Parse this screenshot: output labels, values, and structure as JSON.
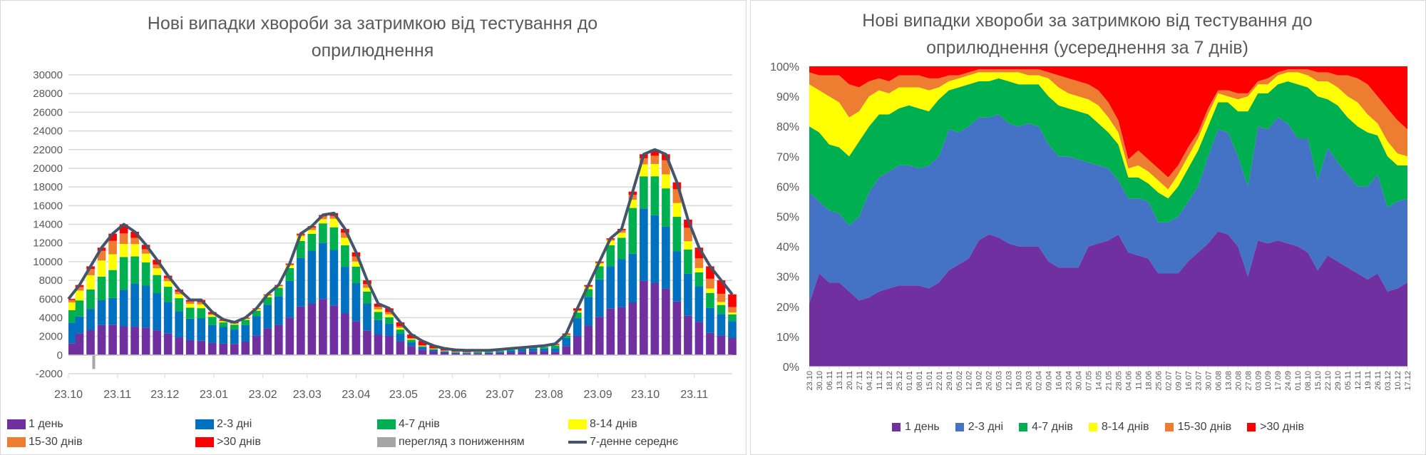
{
  "chart_data": [
    {
      "type": "bar",
      "stacked": true,
      "title": "Нові випадки хвороби за затримкою від тестування до оприлюднення",
      "title_lines": [
        "Нові випадки хвороби за затримкою від тестування до",
        "оприлюднення"
      ],
      "ylim": [
        -2000,
        30000
      ],
      "yticks": [
        "-2000",
        "0",
        "2000",
        "4000",
        "6000",
        "8000",
        "10000",
        "12000",
        "14000",
        "16000",
        "18000",
        "20000",
        "22000",
        "24000",
        "26000",
        "28000",
        "30000"
      ],
      "xtick_labels": [
        "23.10",
        "23.11",
        "23.12",
        "23.01",
        "23.02",
        "23.03",
        "23.04",
        "23.05",
        "23.06",
        "23.07",
        "23.08",
        "23.09",
        "23.10",
        "23.11"
      ],
      "xtick_days": [
        0,
        31,
        61,
        92,
        123,
        151,
        182,
        212,
        243,
        273,
        304,
        335,
        365,
        396
      ],
      "x_days_total": 420,
      "grid": true,
      "legend": [
        {
          "label": "1 день",
          "color": "#7030a0",
          "kind": "bar"
        },
        {
          "label": "2-3 дні",
          "color": "#0070c0",
          "kind": "bar"
        },
        {
          "label": "4-7 днів",
          "color": "#00b050",
          "kind": "bar"
        },
        {
          "label": "8-14 днів",
          "color": "#ffff00",
          "kind": "bar"
        },
        {
          "label": "15-30 днів",
          "color": "#ed7d31",
          "kind": "bar"
        },
        {
          "label": ">30 днів",
          "color": "#ff0000",
          "kind": "bar"
        },
        {
          "label": "перегляд з пониженням",
          "color": "#a6a6a6",
          "kind": "bar"
        },
        {
          "label": "7-денне середнє",
          "color": "#44546a",
          "kind": "line"
        }
      ],
      "legend_placement": "bottom",
      "weekly_7day_average": [
        6000,
        7500,
        9500,
        11500,
        13000,
        14000,
        13200,
        11800,
        10200,
        8500,
        7000,
        5900,
        5900,
        4600,
        3800,
        3500,
        4000,
        5000,
        6500,
        7500,
        9800,
        13000,
        13800,
        15000,
        15200,
        13500,
        11000,
        8000,
        5500,
        5000,
        3500,
        2200,
        1500,
        1000,
        700,
        550,
        500,
        500,
        500,
        600,
        700,
        800,
        900,
        1000,
        1200,
        2300,
        5000,
        7500,
        10000,
        12500,
        13500,
        17500,
        21500,
        22000,
        21500,
        18500,
        14500,
        11500,
        9500,
        8000,
        6500
      ],
      "downgrade_revision": {
        "day": 16,
        "value": -1500
      }
    },
    {
      "type": "area",
      "stacked": true,
      "normalized": true,
      "title": "Нові випадки хвороби за затримкою від тестування до оприлюднення (усереднення за 7 днів)",
      "title_lines": [
        "Нові випадки хвороби за затримкою від тестування до",
        "оприлюднення (усереднення за 7 днів)"
      ],
      "ylim": [
        0,
        100
      ],
      "yticks": [
        "0%",
        "10%",
        "20%",
        "30%",
        "40%",
        "50%",
        "60%",
        "70%",
        "80%",
        "90%",
        "100%"
      ],
      "x": [
        "23.10",
        "30.10",
        "06.11",
        "13.11",
        "20.11",
        "27.11",
        "04.12",
        "11.12",
        "18.12",
        "25.12",
        "01.01",
        "08.01",
        "15.01",
        "22.01",
        "29.01",
        "05.02",
        "12.02",
        "19.02",
        "26.02",
        "05.03",
        "12.03",
        "19.03",
        "26.03",
        "02.04",
        "09.04",
        "16.04",
        "23.04",
        "30.04",
        "07.05",
        "14.05",
        "21.05",
        "28.05",
        "04.06",
        "11.06",
        "18.06",
        "25.06",
        "02.07",
        "09.07",
        "16.07",
        "23.07",
        "30.07",
        "06.08",
        "13.08",
        "20.08",
        "27.08",
        "03.09",
        "10.09",
        "17.09",
        "24.09",
        "01.10",
        "08.10",
        "15.10",
        "22.10",
        "29.10",
        "05.11",
        "12.11",
        "19.11",
        "26.11",
        "03.12",
        "10.12",
        "17.12"
      ],
      "legend_placement": "bottom",
      "value_format": "cumulative percent (top of each stacked band)",
      "series": [
        {
          "name": "1 день",
          "color": "#7030a0",
          "cumulative": [
            21,
            31,
            28,
            28,
            25,
            22,
            23,
            25,
            26,
            27,
            27,
            27,
            26,
            28,
            32,
            34,
            36,
            42,
            44,
            43,
            41,
            40,
            40,
            40,
            35,
            33,
            33,
            33,
            40,
            41,
            42,
            44,
            38,
            37,
            36,
            31,
            31,
            31,
            35,
            38,
            41,
            45,
            44,
            40,
            30,
            42,
            41,
            42,
            41,
            40,
            38,
            32,
            37,
            35,
            33,
            31,
            29,
            31,
            25,
            26,
            28
          ]
        },
        {
          "name": "2-3 дні",
          "color": "#4472c4",
          "cumulative": [
            58,
            55,
            52,
            51,
            47,
            50,
            58,
            63,
            65,
            67,
            67,
            66,
            67,
            70,
            79,
            78,
            80,
            83,
            83,
            84,
            81,
            80,
            81,
            80,
            74,
            70,
            70,
            69,
            68,
            67,
            66,
            62,
            56,
            56,
            55,
            48,
            48,
            50,
            55,
            60,
            70,
            79,
            78,
            70,
            60,
            80,
            79,
            83,
            81,
            76,
            76,
            62,
            73,
            68,
            64,
            60,
            60,
            64,
            53,
            55,
            56
          ]
        },
        {
          "name": "4-7 днів",
          "color": "#00b050",
          "cumulative": [
            80,
            78,
            74,
            73,
            70,
            75,
            80,
            84,
            84,
            86,
            87,
            86,
            85,
            89,
            92,
            93,
            94,
            95,
            95,
            96,
            95,
            94,
            94,
            94,
            90,
            87,
            86,
            85,
            84,
            81,
            78,
            74,
            63,
            63,
            61,
            58,
            56,
            60,
            66,
            72,
            80,
            88,
            88,
            85,
            85,
            91,
            91,
            94,
            95,
            94,
            93,
            90,
            89,
            87,
            83,
            80,
            78,
            77,
            70,
            67,
            67
          ]
        },
        {
          "name": "8-14 днів",
          "color": "#ffff00",
          "cumulative": [
            94,
            92,
            90,
            88,
            83,
            85,
            90,
            92,
            91,
            93,
            93,
            93,
            92,
            93,
            95,
            96,
            97,
            98,
            98,
            98,
            98,
            98,
            97,
            97,
            96,
            93,
            91,
            90,
            89,
            87,
            83,
            78,
            66,
            67,
            65,
            62,
            59,
            64,
            70,
            76,
            84,
            91,
            90,
            89,
            90,
            94,
            94,
            97,
            98,
            98,
            97,
            95,
            95,
            93,
            90,
            88,
            84,
            81,
            75,
            71,
            70
          ]
        },
        {
          "name": "15-30 днів",
          "color": "#ed7d31",
          "cumulative": [
            98,
            97,
            97,
            97,
            94,
            93,
            95,
            96,
            95,
            97,
            97,
            97,
            96,
            96,
            97,
            97,
            98,
            99,
            99,
            99,
            99,
            99,
            99,
            99,
            98,
            97,
            96,
            95,
            94,
            92,
            88,
            82,
            69,
            72,
            69,
            66,
            63,
            67,
            73,
            78,
            86,
            92,
            92,
            91,
            91,
            95,
            96,
            98,
            99,
            99,
            99,
            98,
            98,
            97,
            97,
            96,
            94,
            90,
            86,
            82,
            79
          ]
        },
        {
          "name": ">30 днів",
          "color": "#ff0000",
          "cumulative": [
            100,
            100,
            100,
            100,
            100,
            100,
            100,
            100,
            100,
            100,
            100,
            100,
            100,
            100,
            100,
            100,
            100,
            100,
            100,
            100,
            100,
            100,
            100,
            100,
            100,
            100,
            100,
            100,
            100,
            100,
            100,
            100,
            100,
            100,
            100,
            100,
            100,
            100,
            100,
            100,
            100,
            100,
            100,
            100,
            100,
            100,
            100,
            100,
            100,
            100,
            100,
            100,
            100,
            100,
            100,
            100,
            100,
            100,
            100,
            100,
            100
          ]
        }
      ]
    }
  ]
}
